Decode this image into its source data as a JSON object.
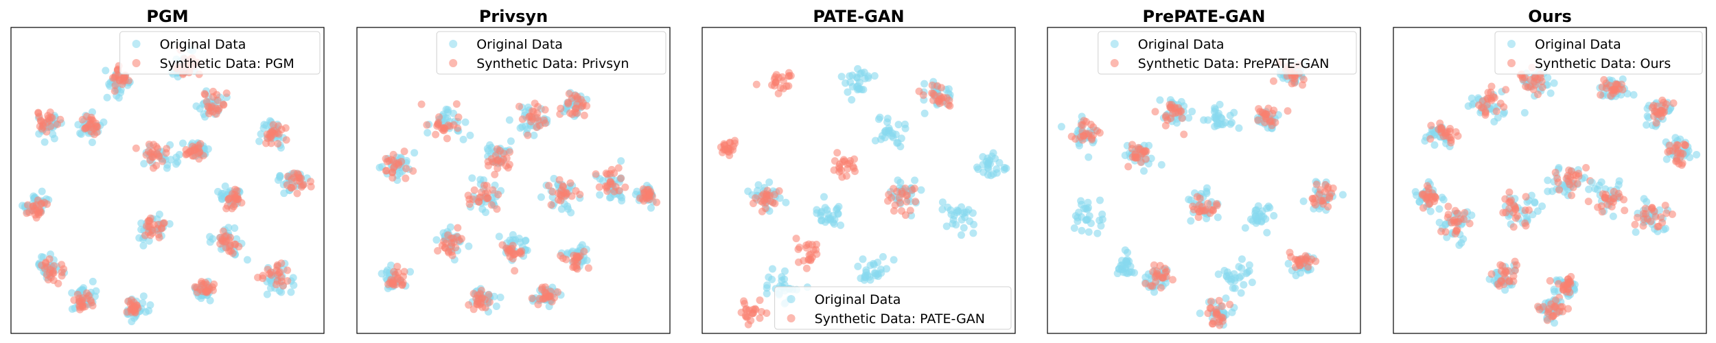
{
  "colors": {
    "original": "#87d9ef",
    "synthetic": "#fa8070"
  },
  "chart_data": [
    {
      "type": "scatter",
      "title": "PGM",
      "legend_position": "top-right",
      "xticks": "none",
      "yticks": "none",
      "series": [
        {
          "name": "Original Data",
          "color": "#87d9ef",
          "alpha": 0.55
        },
        {
          "name": "Synthetic Data: PGM",
          "color": "#fa8070",
          "alpha": 0.55
        }
      ]
    },
    {
      "type": "scatter",
      "title": "Privsyn",
      "legend_position": "top-right",
      "xticks": "none",
      "yticks": "none",
      "series": [
        {
          "name": "Original Data",
          "color": "#87d9ef",
          "alpha": 0.55
        },
        {
          "name": "Synthetic Data: Privsyn",
          "color": "#fa8070",
          "alpha": 0.55
        }
      ]
    },
    {
      "type": "scatter",
      "title": "PATE-GAN",
      "legend_position": "bottom-right",
      "xticks": "none",
      "yticks": "none",
      "series": [
        {
          "name": "Original Data",
          "color": "#87d9ef",
          "alpha": 0.55
        },
        {
          "name": "Synthetic Data: PATE-GAN",
          "color": "#fa8070",
          "alpha": 0.55
        }
      ]
    },
    {
      "type": "scatter",
      "title": "PrePATE-GAN",
      "legend_position": "top-right",
      "xticks": "none",
      "yticks": "none",
      "series": [
        {
          "name": "Original Data",
          "color": "#87d9ef",
          "alpha": 0.55
        },
        {
          "name": "Synthetic Data: PrePATE-GAN",
          "color": "#fa8070",
          "alpha": 0.55
        }
      ]
    },
    {
      "type": "scatter",
      "title": "Ours",
      "legend_position": "top-right",
      "xticks": "none",
      "yticks": "none",
      "series": [
        {
          "name": "Original Data",
          "color": "#87d9ef",
          "alpha": 0.55
        },
        {
          "name": "Synthetic Data: Ours",
          "color": "#fa8070",
          "alpha": 0.55
        }
      ]
    }
  ]
}
